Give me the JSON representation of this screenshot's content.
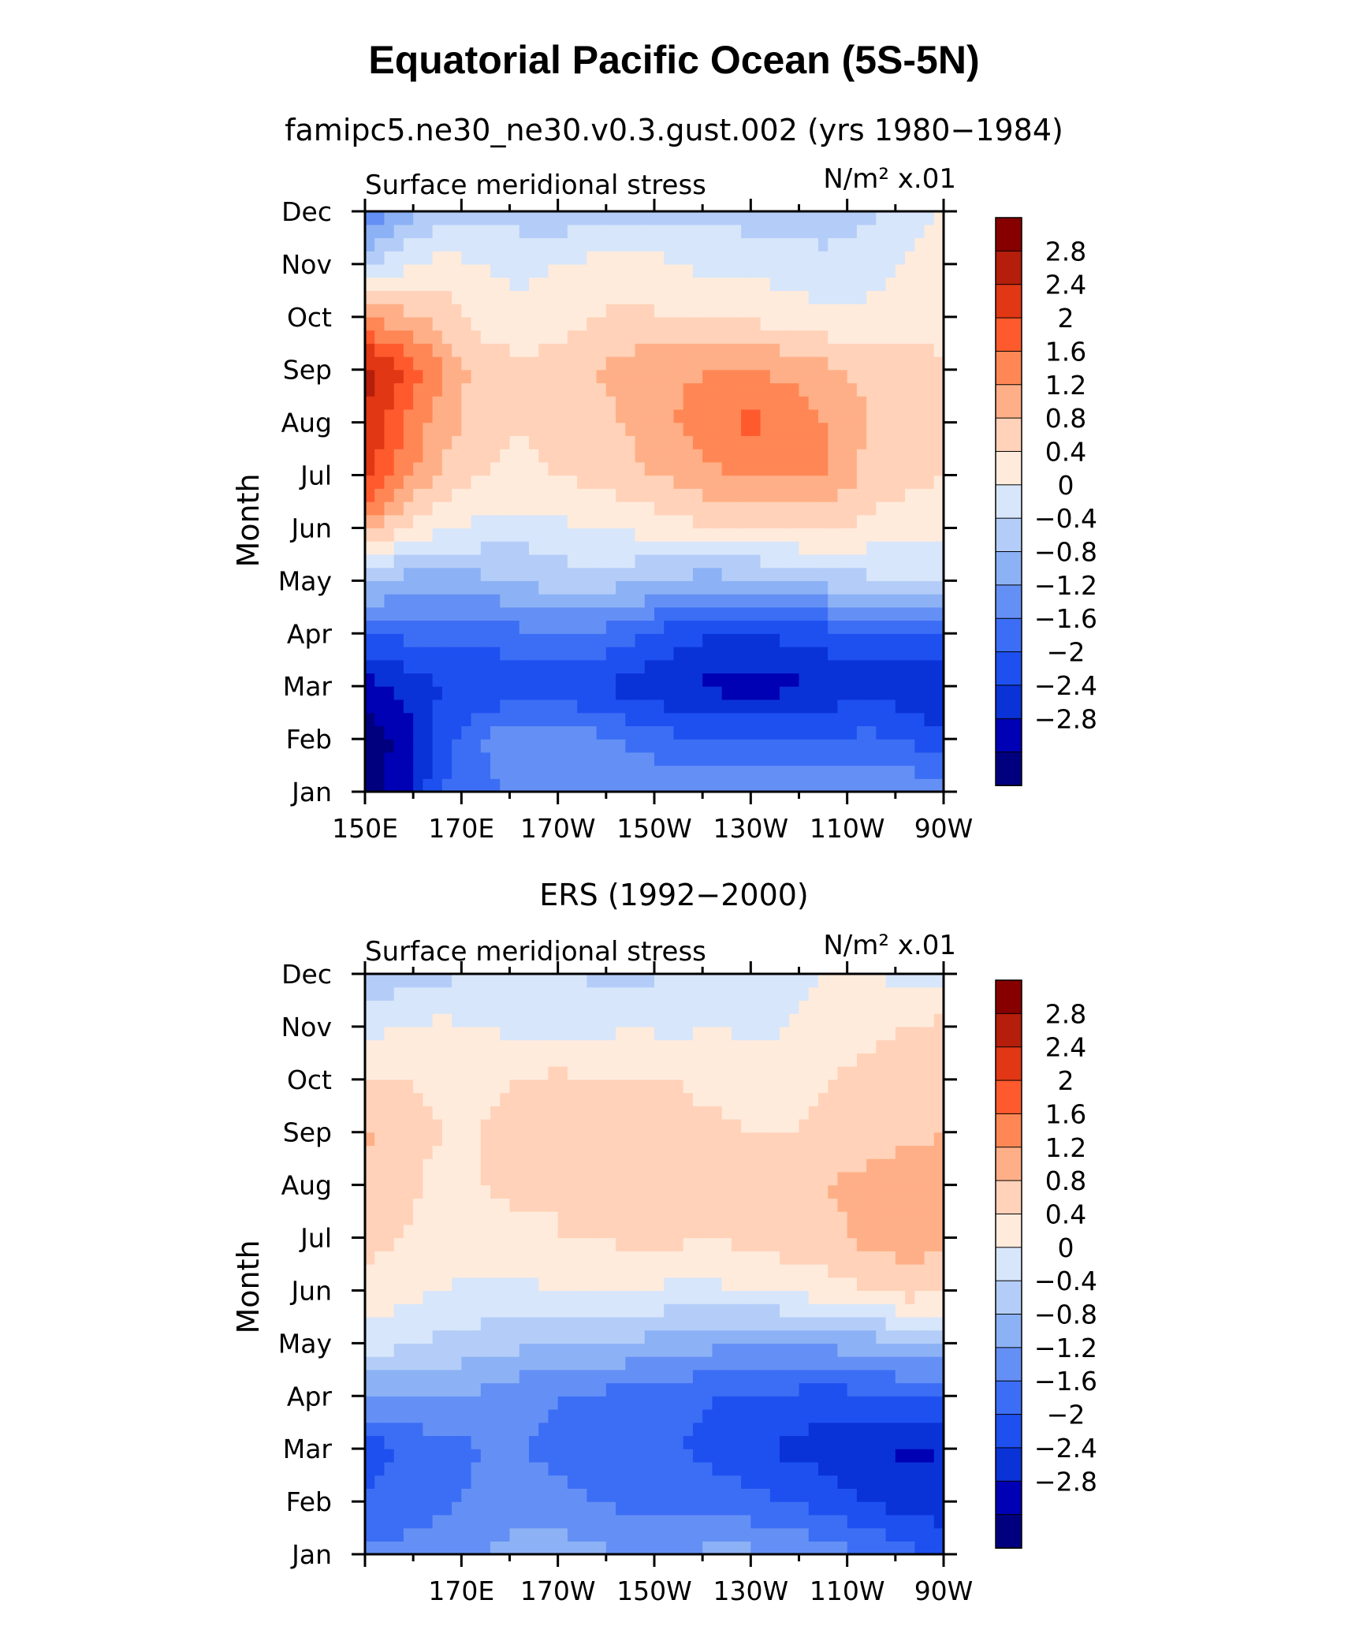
{
  "figure": {
    "title": "Equatorial Pacific Ocean (5S-5N)"
  },
  "chart_data": [
    {
      "type": "heatmap",
      "panel_title": "famipc5.ne30_ne30.v0.3.gust.002 (yrs 1980−1984)",
      "variable_label": "Surface meridional stress",
      "units_label": "N/m² x.01",
      "ylabel": "Month",
      "xlabel": "",
      "x_ticks": [
        "150E",
        "170E",
        "170W",
        "150W",
        "130W",
        "110W",
        "90W"
      ],
      "y_ticks": [
        "Jan",
        "Feb",
        "Mar",
        "Apr",
        "May",
        "Jun",
        "Jul",
        "Aug",
        "Sep",
        "Oct",
        "Nov",
        "Dec"
      ],
      "x_range_lon": [
        150,
        270
      ],
      "colorbar_labels": [
        "2.8",
        "2.4",
        "2",
        "1.6",
        "1.2",
        "0.8",
        "0.4",
        "0",
        "−0.4",
        "−0.8",
        "−1.2",
        "−1.6",
        "−2",
        "−2.4",
        "−2.8"
      ],
      "x_lon": [
        150,
        158,
        166,
        174,
        182,
        190,
        198,
        206,
        214,
        222,
        230,
        238,
        246,
        254,
        262,
        270
      ],
      "z": [
        [
          -3.0,
          -2.6,
          -1.6,
          -1.3,
          -1.1,
          -1.0,
          -1.0,
          -0.9,
          -0.9,
          -0.9,
          -0.9,
          -0.9,
          -0.9,
          -0.9,
          -0.9,
          -0.9
        ],
        [
          -3.0,
          -2.7,
          -1.8,
          -1.2,
          -0.9,
          -1.0,
          -1.1,
          -1.3,
          -1.5,
          -1.6,
          -1.6,
          -1.6,
          -1.6,
          -1.5,
          -1.6,
          -1.9
        ],
        [
          -2.6,
          -2.3,
          -2.0,
          -2.0,
          -1.9,
          -1.9,
          -2.0,
          -2.2,
          -2.4,
          -2.5,
          -2.6,
          -2.5,
          -2.3,
          -2.2,
          -2.3,
          -2.5
        ],
        [
          -1.5,
          -1.5,
          -1.5,
          -1.5,
          -1.3,
          -1.2,
          -1.3,
          -1.5,
          -1.8,
          -2.0,
          -2.1,
          -1.9,
          -1.8,
          -1.7,
          -1.6,
          -1.6
        ],
        [
          -0.2,
          -0.6,
          -0.7,
          -0.5,
          -0.4,
          -0.2,
          -0.2,
          -0.3,
          -0.5,
          -0.6,
          -0.5,
          -0.4,
          -0.2,
          -0.1,
          0.0,
          0.1
        ],
        [
          1.5,
          0.7,
          0.5,
          0.3,
          0.2,
          0.3,
          0.4,
          0.5,
          0.6,
          0.8,
          0.8,
          0.8,
          0.9,
          0.7,
          0.6,
          0.5
        ],
        [
          2.6,
          1.8,
          1.1,
          0.8,
          0.7,
          0.8,
          0.9,
          1.1,
          1.3,
          1.5,
          1.7,
          1.7,
          1.6,
          1.1,
          0.9,
          0.8
        ],
        [
          2.8,
          2.0,
          1.4,
          1.0,
          0.8,
          0.9,
          1.0,
          1.3,
          1.6,
          1.9,
          2.1,
          1.9,
          1.6,
          1.2,
          1.0,
          1.0
        ],
        [
          3.0,
          2.4,
          1.6,
          1.0,
          0.9,
          1.0,
          1.2,
          1.4,
          1.5,
          1.6,
          1.6,
          1.5,
          1.3,
          1.1,
          1.0,
          0.9
        ],
        [
          1.6,
          1.3,
          1.0,
          0.7,
          0.5,
          0.6,
          0.8,
          0.9,
          0.8,
          0.8,
          0.7,
          0.6,
          0.5,
          0.5,
          0.6,
          0.6
        ],
        [
          0.0,
          0.3,
          0.6,
          0.4,
          0.3,
          0.4,
          0.5,
          0.6,
          0.4,
          0.3,
          0.3,
          0.2,
          0.1,
          0.2,
          0.4,
          0.6
        ],
        [
          -1.4,
          -0.6,
          -0.3,
          -0.1,
          -0.2,
          -0.3,
          -0.2,
          -0.1,
          -0.1,
          -0.1,
          -0.2,
          -0.2,
          -0.2,
          -0.1,
          0.2,
          0.4
        ]
      ]
    },
    {
      "type": "heatmap",
      "panel_title": "ERS (1992−2000)",
      "variable_label": "Surface meridional stress",
      "units_label": "N/m² x.01",
      "ylabel": "Month",
      "xlabel": "",
      "x_ticks": [
        "170E",
        "170W",
        "150W",
        "130W",
        "110W",
        "90W"
      ],
      "y_ticks": [
        "Jan",
        "Feb",
        "Mar",
        "Apr",
        "May",
        "Jun",
        "Jul",
        "Aug",
        "Sep",
        "Oct",
        "Nov",
        "Dec"
      ],
      "x_range_lon": [
        150,
        270
      ],
      "colorbar_labels": [
        "2.8",
        "2.4",
        "2",
        "1.6",
        "1.2",
        "0.8",
        "0.4",
        "0",
        "−0.4",
        "−0.8",
        "−1.2",
        "−1.6",
        "−2",
        "−2.4",
        "−2.8"
      ],
      "x_lon": [
        150,
        158,
        166,
        174,
        182,
        190,
        198,
        206,
        214,
        222,
        230,
        238,
        246,
        254,
        262,
        270
      ],
      "z": [
        [
          -1.0,
          -1.1,
          -1.0,
          -0.8,
          -0.6,
          -0.6,
          -0.7,
          -0.9,
          -0.8,
          -0.7,
          -0.7,
          -0.7,
          -1.0,
          -1.2,
          -1.4,
          -1.8
        ],
        [
          -1.6,
          -1.4,
          -1.3,
          -1.1,
          -1.0,
          -1.1,
          -1.2,
          -1.3,
          -1.3,
          -1.4,
          -1.5,
          -1.6,
          -1.8,
          -2.0,
          -2.2,
          -2.2
        ],
        [
          -1.8,
          -1.6,
          -1.4,
          -1.2,
          -1.2,
          -1.3,
          -1.4,
          -1.5,
          -1.6,
          -1.7,
          -1.9,
          -2.1,
          -2.2,
          -2.3,
          -2.5,
          -2.4
        ],
        [
          -0.8,
          -0.8,
          -0.7,
          -0.9,
          -1.1,
          -1.2,
          -1.3,
          -1.4,
          -1.5,
          -1.6,
          -1.7,
          -1.7,
          -1.8,
          -1.7,
          -1.6,
          -1.5
        ],
        [
          0.2,
          0.1,
          -0.1,
          -0.2,
          -0.3,
          -0.3,
          -0.4,
          -0.5,
          -0.6,
          -0.7,
          -0.8,
          -0.8,
          -0.7,
          -0.6,
          -0.5,
          -0.4
        ],
        [
          0.7,
          0.5,
          0.4,
          0.3,
          0.3,
          0.4,
          0.4,
          0.4,
          0.3,
          0.3,
          0.4,
          0.5,
          0.6,
          0.8,
          1.0,
          0.9
        ],
        [
          0.9,
          0.8,
          0.6,
          0.6,
          0.7,
          0.8,
          0.8,
          0.9,
          0.9,
          0.8,
          0.9,
          1.0,
          1.1,
          1.3,
          1.4,
          1.3
        ],
        [
          1.0,
          0.9,
          0.7,
          0.8,
          0.9,
          0.8,
          1.0,
          1.0,
          0.8,
          0.9,
          1.0,
          1.1,
          1.2,
          1.3,
          1.4,
          1.4
        ],
        [
          1.3,
          0.9,
          0.8,
          0.8,
          0.9,
          1.0,
          0.9,
          0.9,
          0.9,
          0.9,
          0.8,
          0.8,
          0.9,
          1.0,
          1.1,
          1.2
        ],
        [
          0.8,
          0.8,
          0.7,
          0.7,
          0.8,
          0.9,
          0.8,
          0.8,
          0.8,
          0.7,
          0.6,
          0.6,
          0.8,
          0.9,
          1.1,
          1.2
        ],
        [
          0.3,
          0.4,
          0.5,
          0.4,
          0.3,
          0.2,
          0.3,
          0.4,
          0.3,
          0.4,
          0.3,
          0.4,
          0.6,
          0.7,
          0.8,
          0.9
        ],
        [
          -0.3,
          -0.2,
          -0.1,
          0.0,
          0.1,
          0.1,
          -0.1,
          -0.2,
          0.1,
          0.2,
          0.3,
          0.3,
          0.4,
          0.4,
          0.3,
          0.3
        ]
      ]
    }
  ],
  "colors": {
    "palette": [
      "#00007F",
      "#0000B4",
      "#0A33D7",
      "#1E50F0",
      "#3C6EF5",
      "#6490F5",
      "#8CB2F5",
      "#B4CDF8",
      "#D7E6FA",
      "#FFEBDC",
      "#FFD2B9",
      "#FFAF87",
      "#FF8755",
      "#FF5A2D",
      "#E13714",
      "#B41E0A",
      "#870000"
    ]
  }
}
